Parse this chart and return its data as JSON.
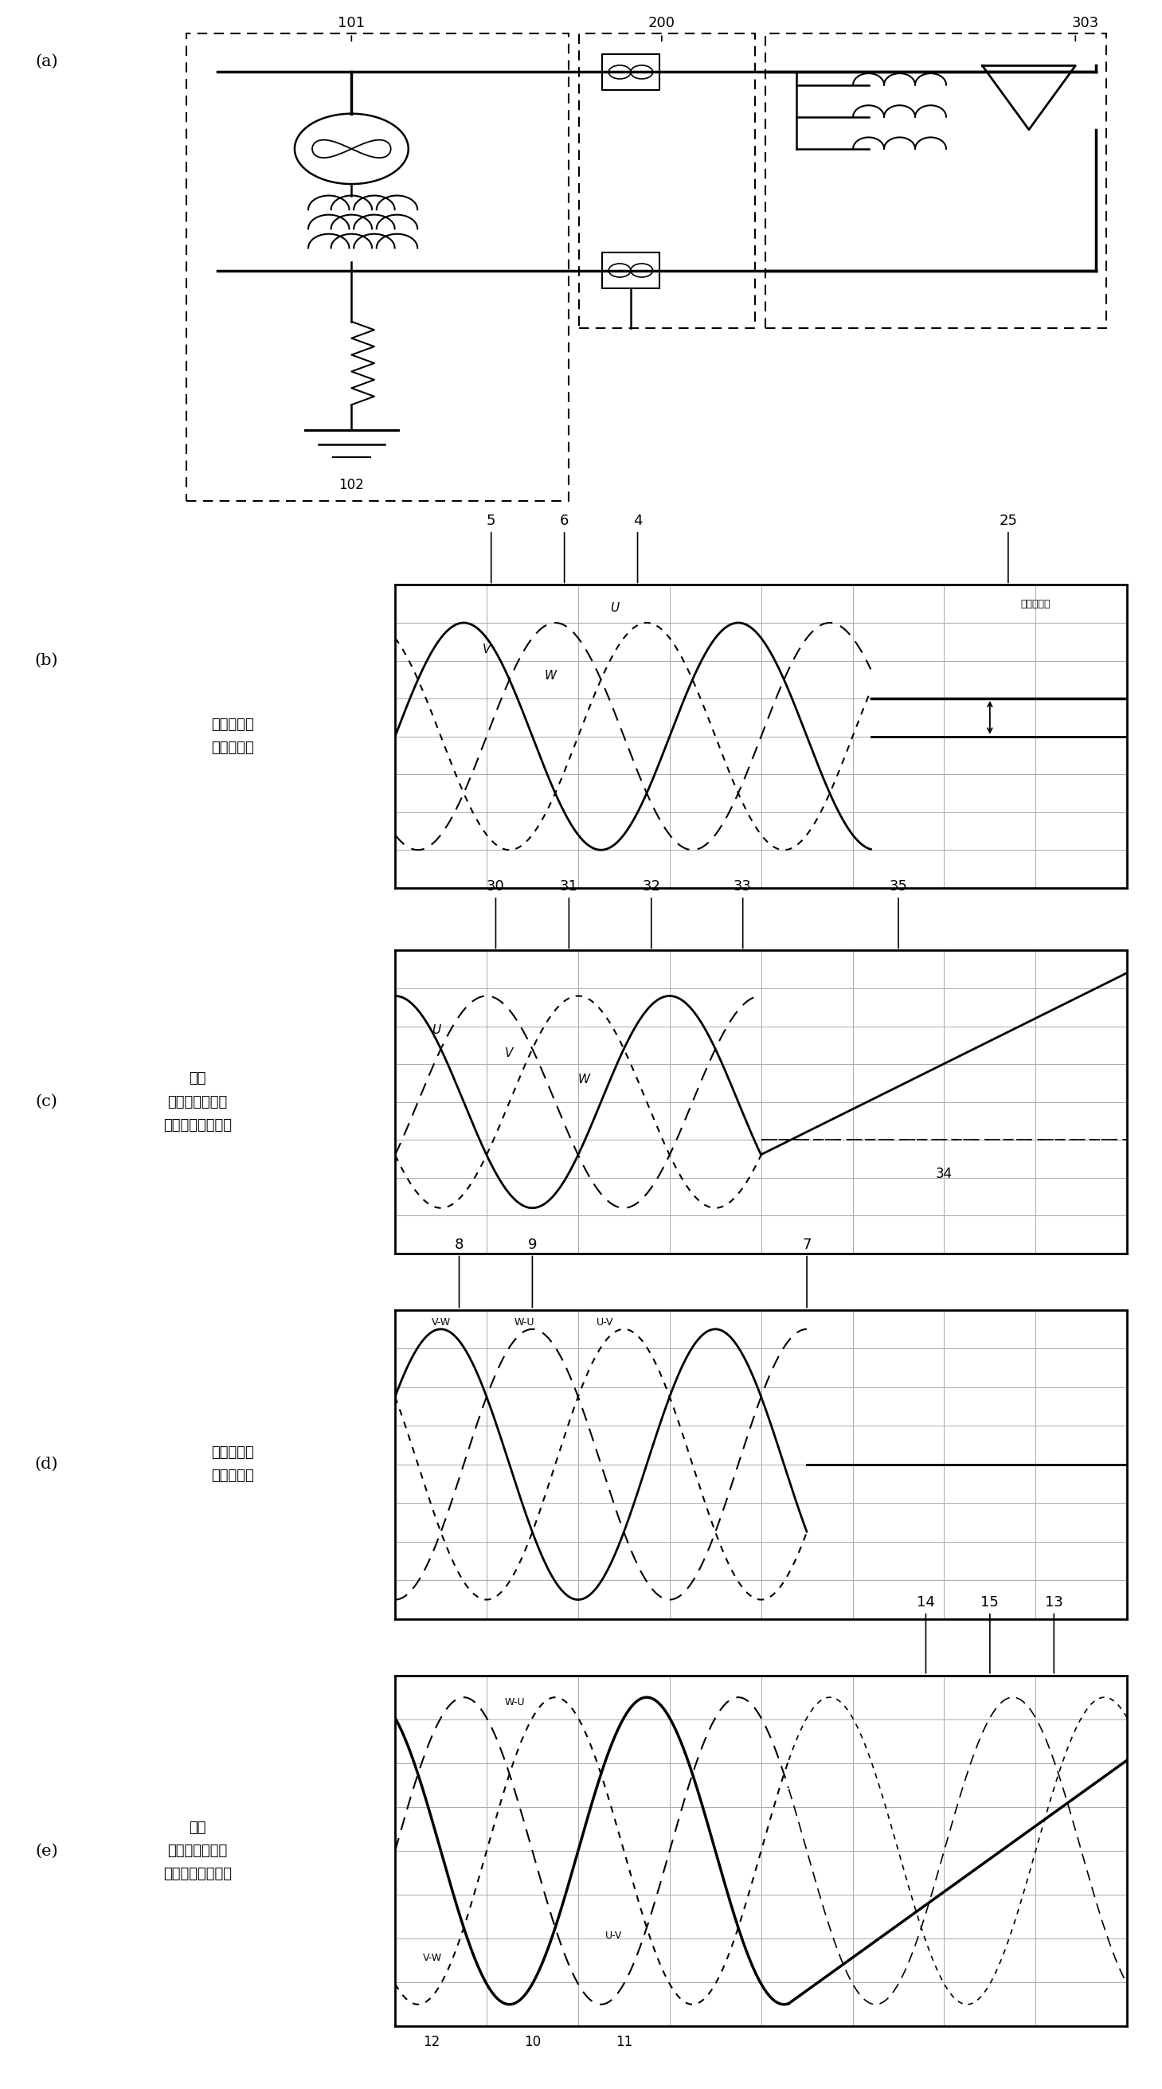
{
  "panel_b_title": "变压器一次\n侧对地电压",
  "panel_c_title": "磁通\n（变压器一次侧\n对地电压的积分）",
  "panel_d_title": "变压器一次\n侧线间电压",
  "panel_e_title": "磁通\n（变压器一次侧\n线间电压的积分）",
  "neutral_label": "中性点电压",
  "bg_color": "#ffffff"
}
